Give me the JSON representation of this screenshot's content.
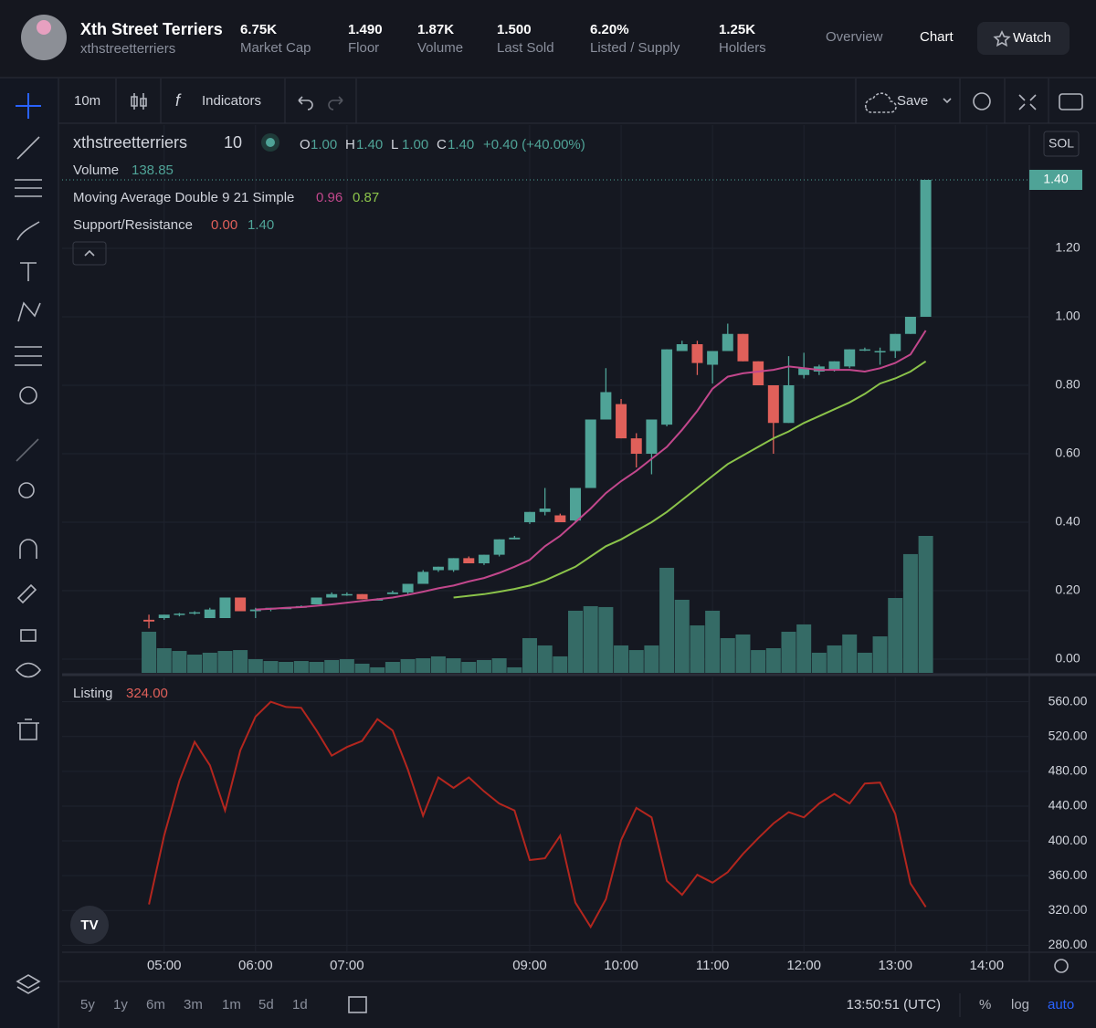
{
  "header": {
    "name": "Xth Street Terriers",
    "handle": "xthstreetterriers",
    "stats": [
      {
        "value": "6.75K",
        "label": "Market Cap"
      },
      {
        "value": "1.490",
        "label": "Floor"
      },
      {
        "value": "1.87K",
        "label": "Volume"
      },
      {
        "value": "1.500",
        "label": "Last Sold"
      },
      {
        "value": "6.20%",
        "label": "Listed / Supply"
      },
      {
        "value": "1.25K",
        "label": "Holders"
      }
    ],
    "nav": [
      "Overview",
      "Chart"
    ],
    "watch": "Watch"
  },
  "toolbar": {
    "interval": "10m",
    "indicators": "Indicators",
    "save": "Save"
  },
  "legend": {
    "symbol": "xthstreetterriers",
    "interval": "10",
    "ohlc": [
      [
        "O",
        "1.00"
      ],
      [
        "H",
        "1.40"
      ],
      [
        "L",
        "1.00"
      ],
      [
        "C",
        "1.40"
      ]
    ],
    "change": "+0.40 (+40.00%)",
    "volume": [
      "Volume",
      "138.85"
    ],
    "ma": [
      "Moving Average Double 9 21 Simple",
      "0.96",
      "0.87"
    ],
    "sr": [
      "Support/Resistance",
      "0.00",
      "1.40"
    ],
    "listing": [
      "Listing",
      "324.00"
    ],
    "currency": "SOL"
  },
  "bottom": {
    "ranges": [
      "5y",
      "1y",
      "6m",
      "3m",
      "1m",
      "5d",
      "1d"
    ],
    "time": "13:50:51 (UTC)",
    "options": [
      "%",
      "log",
      "auto"
    ]
  },
  "chart_data": [
    {
      "type": "candlestick",
      "price_label": "1.40",
      "up_color": "#4fa397",
      "down_color": "#e0605a",
      "volume_color": "#356b66",
      "x": [
        290,
        300,
        310,
        320,
        330,
        340,
        350,
        360,
        370,
        380,
        390,
        400,
        410,
        420,
        430,
        440,
        450,
        460,
        470,
        480,
        490,
        500,
        510,
        520,
        530,
        540,
        550,
        560,
        570,
        580,
        590,
        600,
        610,
        620,
        630,
        640,
        650,
        660,
        670,
        680,
        690,
        700,
        710,
        720,
        730,
        740,
        750,
        760,
        770,
        780,
        790,
        800
      ],
      "open": [
        0.115,
        0.12,
        0.13,
        0.133,
        0.12,
        0.12,
        0.18,
        0.14,
        0.145,
        0.15,
        0.15,
        0.16,
        0.18,
        0.19,
        0.19,
        0.175,
        0.19,
        0.195,
        0.22,
        0.26,
        0.26,
        0.295,
        0.28,
        0.305,
        0.35,
        0.4,
        0.43,
        0.42,
        0.405,
        0.5,
        0.7,
        0.745,
        0.645,
        0.6,
        0.685,
        0.9,
        0.92,
        0.86,
        0.9,
        0.95,
        0.87,
        0.8,
        0.69,
        0.83,
        0.84,
        0.845,
        0.855,
        0.905,
        0.9,
        0.9,
        0.95,
        1.0
      ],
      "high": [
        0.13,
        0.13,
        0.135,
        0.14,
        0.15,
        0.18,
        0.18,
        0.15,
        0.15,
        0.152,
        0.157,
        0.18,
        0.195,
        0.195,
        0.19,
        0.178,
        0.2,
        0.22,
        0.26,
        0.27,
        0.295,
        0.3,
        0.305,
        0.35,
        0.36,
        0.43,
        0.5,
        0.425,
        0.5,
        0.7,
        0.85,
        0.76,
        0.66,
        0.7,
        0.905,
        0.93,
        0.93,
        0.9,
        0.98,
        0.95,
        0.87,
        0.8,
        0.885,
        0.895,
        0.86,
        0.87,
        0.905,
        0.91,
        0.91,
        0.95,
        1.0,
        1.4
      ],
      "low": [
        0.09,
        0.115,
        0.125,
        0.13,
        0.12,
        0.12,
        0.14,
        0.12,
        0.14,
        0.148,
        0.15,
        0.16,
        0.18,
        0.185,
        0.175,
        0.172,
        0.19,
        0.19,
        0.22,
        0.255,
        0.255,
        0.28,
        0.275,
        0.3,
        0.35,
        0.395,
        0.42,
        0.4,
        0.4,
        0.5,
        0.7,
        0.645,
        0.56,
        0.54,
        0.68,
        0.9,
        0.83,
        0.805,
        0.9,
        0.87,
        0.8,
        0.6,
        0.69,
        0.82,
        0.83,
        0.84,
        0.85,
        0.9,
        0.86,
        0.88,
        0.95,
        1.0
      ],
      "close": [
        0.11,
        0.13,
        0.133,
        0.137,
        0.145,
        0.18,
        0.14,
        0.145,
        0.15,
        0.15,
        0.155,
        0.18,
        0.19,
        0.19,
        0.175,
        0.175,
        0.195,
        0.22,
        0.255,
        0.27,
        0.295,
        0.28,
        0.305,
        0.35,
        0.355,
        0.43,
        0.44,
        0.4,
        0.5,
        0.7,
        0.78,
        0.645,
        0.6,
        0.7,
        0.905,
        0.92,
        0.865,
        0.9,
        0.95,
        0.87,
        0.8,
        0.69,
        0.8,
        0.85,
        0.855,
        0.87,
        0.905,
        0.905,
        0.9,
        0.95,
        1.0,
        1.4
      ],
      "volume": [
        41.7,
        25,
        22.2,
        18.5,
        20.4,
        22.2,
        23.1,
        13.9,
        12,
        11.1,
        12,
        11.1,
        13,
        13.9,
        9.3,
        5.6,
        11.1,
        13.9,
        14.8,
        16.7,
        14.8,
        11.1,
        13,
        14.8,
        5.6,
        35.2,
        27.8,
        16.7,
        63,
        67.6,
        66.7,
        27.8,
        23.1,
        27.8,
        106.5,
        74.1,
        48.1,
        63,
        35.2,
        38.9,
        23.1,
        25,
        41.7,
        49.1,
        20.4,
        27.8,
        38.9,
        20.4,
        37,
        75.9,
        120.4,
        138.85
      ],
      "series": [
        {
          "name": "MA 9",
          "color": "#c2478c",
          "values": [
            null,
            null,
            null,
            null,
            null,
            null,
            null,
            0.145,
            0.147,
            0.15,
            0.152,
            0.156,
            0.16,
            0.165,
            0.17,
            0.175,
            0.18,
            0.188,
            0.197,
            0.207,
            0.215,
            0.227,
            0.237,
            0.252,
            0.27,
            0.29,
            0.33,
            0.36,
            0.4,
            0.44,
            0.485,
            0.52,
            0.55,
            0.585,
            0.62,
            0.67,
            0.725,
            0.79,
            0.825,
            0.835,
            0.84,
            0.845,
            0.855,
            0.85,
            0.845,
            0.845,
            0.845,
            0.84,
            0.85,
            0.865,
            0.89,
            0.96
          ]
        },
        {
          "name": "MA 21",
          "color": "#8bc34a",
          "values": [
            null,
            null,
            null,
            null,
            null,
            null,
            null,
            null,
            null,
            null,
            null,
            null,
            null,
            null,
            null,
            null,
            null,
            null,
            null,
            null,
            0.18,
            0.185,
            0.19,
            0.197,
            0.205,
            0.215,
            0.23,
            0.25,
            0.27,
            0.3,
            0.33,
            0.35,
            0.375,
            0.4,
            0.43,
            0.465,
            0.5,
            0.535,
            0.57,
            0.595,
            0.62,
            0.645,
            0.665,
            0.69,
            0.71,
            0.73,
            0.75,
            0.775,
            0.805,
            0.82,
            0.84,
            0.87
          ]
        }
      ],
      "xlim": [
        233,
        868
      ],
      "xticks": [
        {
          "value": 300,
          "label": "05:00"
        },
        {
          "value": 360,
          "label": "06:00"
        },
        {
          "value": 420,
          "label": "07:00"
        },
        {
          "value": 540,
          "label": "09:00"
        },
        {
          "value": 600,
          "label": "10:00"
        },
        {
          "value": 660,
          "label": "11:00"
        },
        {
          "value": 720,
          "label": "12:00"
        },
        {
          "value": 780,
          "label": "13:00"
        },
        {
          "value": 840,
          "label": "14:00"
        }
      ],
      "ylim": [
        -0.04,
        1.56
      ],
      "yticks": [
        {
          "value": 0,
          "label": "0.00"
        },
        {
          "value": 0.2,
          "label": "0.20"
        },
        {
          "value": 0.4,
          "label": "0.40"
        },
        {
          "value": 0.6,
          "label": "0.60"
        },
        {
          "value": 0.8,
          "label": "0.80"
        },
        {
          "value": 1,
          "label": "1.00"
        },
        {
          "value": 1.2,
          "label": "1.20"
        }
      ],
      "grid": true
    },
    {
      "type": "line",
      "series": [
        {
          "name": "Listing",
          "color": "#b3261e",
          "values": [
            327,
            406,
            469,
            514,
            487,
            435,
            504,
            543,
            560,
            554,
            553,
            527,
            498,
            508,
            515,
            540,
            527,
            482,
            429,
            473,
            461,
            473,
            457,
            443,
            435,
            378,
            380,
            406,
            329,
            301,
            333,
            401,
            438,
            427,
            354,
            338,
            361,
            352,
            364,
            385,
            403,
            420,
            433,
            427,
            443,
            454,
            443,
            466,
            467,
            431,
            351,
            324
          ]
        }
      ],
      "x": [
        290,
        300,
        310,
        320,
        330,
        340,
        350,
        360,
        370,
        380,
        390,
        400,
        410,
        420,
        430,
        440,
        450,
        460,
        470,
        480,
        490,
        500,
        510,
        520,
        530,
        540,
        550,
        560,
        570,
        580,
        590,
        600,
        610,
        620,
        630,
        640,
        650,
        660,
        670,
        680,
        690,
        700,
        710,
        720,
        730,
        740,
        750,
        760,
        770,
        780,
        790,
        800
      ],
      "xlim": [
        233,
        868
      ],
      "ylim": [
        273,
        588
      ],
      "yticks": [
        {
          "value": 280,
          "label": "280.00"
        },
        {
          "value": 320,
          "label": "320.00"
        },
        {
          "value": 360,
          "label": "360.00"
        },
        {
          "value": 400,
          "label": "400.00"
        },
        {
          "value": 440,
          "label": "440.00"
        },
        {
          "value": 480,
          "label": "480.00"
        },
        {
          "value": 520,
          "label": "520.00"
        },
        {
          "value": 560,
          "label": "560.00"
        }
      ],
      "grid": true
    }
  ]
}
